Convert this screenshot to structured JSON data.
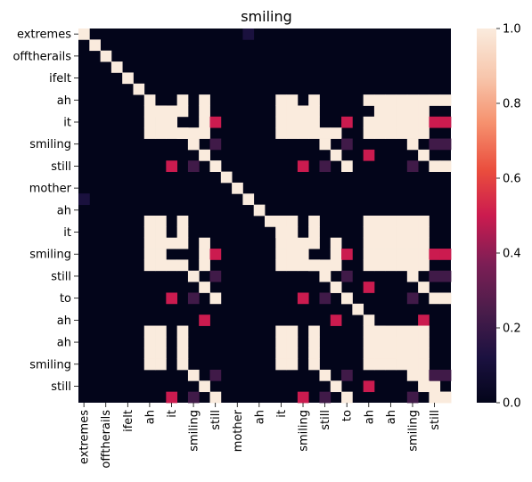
{
  "chart_data": {
    "type": "heatmap",
    "title": "smiling",
    "xlabel": "",
    "ylabel": "",
    "colormap": "rocket",
    "vmin": 0.0,
    "vmax": 1.0,
    "rows": 34,
    "cols": 34,
    "y_tick_labels": [
      "extremes",
      "offtherails",
      "ifelt",
      "ah",
      "it",
      "smiling",
      "still",
      "mother",
      "ah",
      "it",
      "smiling",
      "still",
      "to",
      "ah",
      "ah",
      "smiling",
      "still"
    ],
    "x_tick_labels": [
      "extremes",
      "offtherails",
      "ifelt",
      "ah",
      "it",
      "smiling",
      "still",
      "mother",
      "ah",
      "it",
      "smiling",
      "still",
      "to",
      "ah",
      "ah",
      "smiling",
      "still"
    ],
    "colorbar_ticks": [
      "0.0",
      "0.2",
      "0.4",
      "0.6",
      "0.8",
      "1.0"
    ],
    "colorbar_tick_values": [
      0.0,
      0.2,
      0.4,
      0.6,
      0.8,
      1.0
    ],
    "cells": [
      [
        0,
        0,
        1.0
      ],
      [
        1,
        1,
        1.0
      ],
      [
        2,
        2,
        1.0
      ],
      [
        3,
        3,
        1.0
      ],
      [
        4,
        4,
        1.0
      ],
      [
        5,
        5,
        1.0
      ],
      [
        6,
        6,
        1.0
      ],
      [
        7,
        7,
        1.0
      ],
      [
        8,
        8,
        1.0
      ],
      [
        9,
        9,
        1.0
      ],
      [
        10,
        10,
        1.0
      ],
      [
        11,
        11,
        1.0
      ],
      [
        12,
        12,
        1.0
      ],
      [
        13,
        13,
        1.0
      ],
      [
        14,
        14,
        1.0
      ],
      [
        15,
        15,
        1.0
      ],
      [
        16,
        16,
        1.0
      ],
      [
        17,
        17,
        1.0
      ],
      [
        18,
        18,
        1.0
      ],
      [
        19,
        19,
        1.0
      ],
      [
        20,
        20,
        1.0
      ],
      [
        21,
        21,
        1.0
      ],
      [
        22,
        22,
        1.0
      ],
      [
        23,
        23,
        1.0
      ],
      [
        24,
        24,
        1.0
      ],
      [
        25,
        25,
        1.0
      ],
      [
        26,
        26,
        1.0
      ],
      [
        27,
        27,
        1.0
      ],
      [
        28,
        28,
        1.0
      ],
      [
        29,
        29,
        1.0
      ],
      [
        30,
        30,
        1.0
      ],
      [
        31,
        31,
        1.0
      ],
      [
        32,
        32,
        1.0
      ],
      [
        33,
        33,
        1.0
      ],
      [
        0,
        15,
        0.12
      ],
      [
        15,
        0,
        0.12
      ],
      [
        6,
        9,
        1.0
      ],
      [
        6,
        11,
        1.0
      ],
      [
        6,
        18,
        1.0
      ],
      [
        6,
        19,
        1.0
      ],
      [
        6,
        21,
        1.0
      ],
      [
        6,
        26,
        1.0
      ],
      [
        6,
        27,
        1.0
      ],
      [
        6,
        28,
        1.0
      ],
      [
        6,
        29,
        1.0
      ],
      [
        6,
        30,
        1.0
      ],
      [
        6,
        31,
        1.0
      ],
      [
        6,
        32,
        1.0
      ],
      [
        6,
        33,
        1.0
      ],
      [
        7,
        6,
        1.0
      ],
      [
        7,
        7,
        1.0
      ],
      [
        7,
        8,
        1.0
      ],
      [
        7,
        9,
        1.0
      ],
      [
        7,
        11,
        1.0
      ],
      [
        7,
        18,
        1.0
      ],
      [
        7,
        19,
        1.0
      ],
      [
        7,
        20,
        1.0
      ],
      [
        7,
        21,
        1.0
      ],
      [
        7,
        27,
        1.0
      ],
      [
        7,
        28,
        1.0
      ],
      [
        7,
        29,
        1.0
      ],
      [
        7,
        30,
        1.0
      ],
      [
        7,
        31,
        1.0
      ],
      [
        8,
        6,
        1.0
      ],
      [
        8,
        7,
        1.0
      ],
      [
        8,
        11,
        1.0
      ],
      [
        8,
        12,
        0.5
      ],
      [
        8,
        18,
        1.0
      ],
      [
        8,
        19,
        1.0
      ],
      [
        8,
        20,
        1.0
      ],
      [
        8,
        21,
        1.0
      ],
      [
        8,
        24,
        0.5
      ],
      [
        8,
        26,
        1.0
      ],
      [
        8,
        27,
        1.0
      ],
      [
        8,
        28,
        1.0
      ],
      [
        8,
        29,
        1.0
      ],
      [
        8,
        30,
        1.0
      ],
      [
        8,
        31,
        1.0
      ],
      [
        8,
        32,
        0.5
      ],
      [
        8,
        33,
        0.5
      ],
      [
        9,
        6,
        1.0
      ],
      [
        9,
        7,
        1.0
      ],
      [
        9,
        8,
        1.0
      ],
      [
        9,
        9,
        1.0
      ],
      [
        9,
        10,
        1.0
      ],
      [
        9,
        11,
        1.0
      ],
      [
        9,
        18,
        1.0
      ],
      [
        9,
        19,
        1.0
      ],
      [
        9,
        20,
        1.0
      ],
      [
        9,
        21,
        1.0
      ],
      [
        9,
        22,
        1.0
      ],
      [
        9,
        23,
        1.0
      ],
      [
        9,
        26,
        1.0
      ],
      [
        9,
        27,
        1.0
      ],
      [
        9,
        28,
        1.0
      ],
      [
        9,
        29,
        1.0
      ],
      [
        9,
        30,
        1.0
      ],
      [
        9,
        31,
        1.0
      ],
      [
        10,
        10,
        1.0
      ],
      [
        10,
        12,
        0.22
      ],
      [
        10,
        22,
        1.0
      ],
      [
        10,
        24,
        0.22
      ],
      [
        10,
        30,
        1.0
      ],
      [
        10,
        32,
        0.22
      ],
      [
        10,
        33,
        0.22
      ],
      [
        11,
        11,
        1.0
      ],
      [
        11,
        23,
        1.0
      ],
      [
        11,
        26,
        0.5
      ],
      [
        11,
        31,
        1.0
      ],
      [
        12,
        8,
        0.5
      ],
      [
        12,
        10,
        0.22
      ],
      [
        12,
        12,
        1.0
      ],
      [
        12,
        20,
        0.5
      ],
      [
        12,
        22,
        0.22
      ],
      [
        12,
        24,
        1.0
      ],
      [
        12,
        30,
        0.22
      ],
      [
        12,
        32,
        1.0
      ],
      [
        12,
        33,
        1.0
      ],
      [
        15,
        0,
        0.12
      ],
      [
        17,
        6,
        1.0
      ],
      [
        17,
        7,
        1.0
      ],
      [
        17,
        9,
        1.0
      ],
      [
        17,
        18,
        1.0
      ],
      [
        17,
        19,
        1.0
      ],
      [
        17,
        21,
        1.0
      ],
      [
        17,
        26,
        1.0
      ],
      [
        17,
        27,
        1.0
      ],
      [
        17,
        28,
        1.0
      ],
      [
        17,
        29,
        1.0
      ],
      [
        17,
        30,
        1.0
      ],
      [
        17,
        31,
        1.0
      ],
      [
        18,
        6,
        1.0
      ],
      [
        18,
        7,
        1.0
      ],
      [
        18,
        9,
        1.0
      ],
      [
        18,
        18,
        1.0
      ],
      [
        18,
        19,
        1.0
      ],
      [
        18,
        21,
        1.0
      ],
      [
        18,
        26,
        1.0
      ],
      [
        18,
        27,
        1.0
      ],
      [
        18,
        28,
        1.0
      ],
      [
        18,
        29,
        1.0
      ],
      [
        18,
        30,
        1.0
      ],
      [
        18,
        31,
        1.0
      ],
      [
        19,
        6,
        1.0
      ],
      [
        19,
        7,
        1.0
      ],
      [
        19,
        8,
        1.0
      ],
      [
        19,
        9,
        1.0
      ],
      [
        19,
        11,
        1.0
      ],
      [
        19,
        18,
        1.0
      ],
      [
        19,
        19,
        1.0
      ],
      [
        19,
        20,
        1.0
      ],
      [
        19,
        21,
        1.0
      ],
      [
        19,
        23,
        1.0
      ],
      [
        19,
        26,
        1.0
      ],
      [
        19,
        27,
        1.0
      ],
      [
        19,
        28,
        1.0
      ],
      [
        19,
        29,
        1.0
      ],
      [
        19,
        30,
        1.0
      ],
      [
        19,
        31,
        1.0
      ],
      [
        20,
        6,
        1.0
      ],
      [
        20,
        7,
        1.0
      ],
      [
        20,
        11,
        1.0
      ],
      [
        20,
        12,
        0.5
      ],
      [
        20,
        18,
        1.0
      ],
      [
        20,
        19,
        1.0
      ],
      [
        20,
        23,
        1.0
      ],
      [
        20,
        24,
        0.5
      ],
      [
        20,
        26,
        1.0
      ],
      [
        20,
        27,
        1.0
      ],
      [
        20,
        28,
        1.0
      ],
      [
        20,
        29,
        1.0
      ],
      [
        20,
        30,
        1.0
      ],
      [
        20,
        31,
        1.0
      ],
      [
        20,
        32,
        0.5
      ],
      [
        20,
        33,
        0.5
      ],
      [
        21,
        6,
        1.0
      ],
      [
        21,
        7,
        1.0
      ],
      [
        21,
        8,
        1.0
      ],
      [
        21,
        9,
        1.0
      ],
      [
        21,
        11,
        1.0
      ],
      [
        21,
        18,
        1.0
      ],
      [
        21,
        19,
        1.0
      ],
      [
        21,
        20,
        1.0
      ],
      [
        21,
        21,
        1.0
      ],
      [
        21,
        22,
        1.0
      ],
      [
        21,
        23,
        1.0
      ],
      [
        21,
        26,
        1.0
      ],
      [
        21,
        27,
        1.0
      ],
      [
        21,
        28,
        1.0
      ],
      [
        21,
        29,
        1.0
      ],
      [
        21,
        30,
        1.0
      ],
      [
        21,
        31,
        1.0
      ],
      [
        22,
        10,
        1.0
      ],
      [
        22,
        12,
        0.22
      ],
      [
        22,
        22,
        1.0
      ],
      [
        22,
        24,
        0.22
      ],
      [
        22,
        30,
        1.0
      ],
      [
        22,
        32,
        0.22
      ],
      [
        22,
        33,
        0.22
      ],
      [
        23,
        11,
        1.0
      ],
      [
        23,
        23,
        1.0
      ],
      [
        23,
        26,
        0.5
      ],
      [
        23,
        31,
        1.0
      ],
      [
        24,
        8,
        0.5
      ],
      [
        24,
        10,
        0.22
      ],
      [
        24,
        12,
        1.0
      ],
      [
        24,
        20,
        0.5
      ],
      [
        24,
        22,
        0.22
      ],
      [
        24,
        24,
        1.0
      ],
      [
        24,
        30,
        0.22
      ],
      [
        24,
        32,
        1.0
      ],
      [
        24,
        33,
        1.0
      ],
      [
        26,
        11,
        0.5
      ],
      [
        26,
        23,
        0.5
      ],
      [
        26,
        31,
        0.5
      ],
      [
        27,
        6,
        1.0
      ],
      [
        27,
        7,
        1.0
      ],
      [
        27,
        9,
        1.0
      ],
      [
        27,
        18,
        1.0
      ],
      [
        27,
        19,
        1.0
      ],
      [
        27,
        21,
        1.0
      ],
      [
        27,
        26,
        1.0
      ],
      [
        27,
        27,
        1.0
      ],
      [
        27,
        28,
        1.0
      ],
      [
        27,
        29,
        1.0
      ],
      [
        27,
        30,
        1.0
      ],
      [
        27,
        31,
        1.0
      ],
      [
        28,
        6,
        1.0
      ],
      [
        28,
        7,
        1.0
      ],
      [
        28,
        9,
        1.0
      ],
      [
        28,
        18,
        1.0
      ],
      [
        28,
        19,
        1.0
      ],
      [
        28,
        21,
        1.0
      ],
      [
        28,
        26,
        1.0
      ],
      [
        28,
        27,
        1.0
      ],
      [
        28,
        28,
        1.0
      ],
      [
        28,
        29,
        1.0
      ],
      [
        28,
        30,
        1.0
      ],
      [
        28,
        31,
        1.0
      ],
      [
        29,
        6,
        1.0
      ],
      [
        29,
        7,
        1.0
      ],
      [
        29,
        9,
        1.0
      ],
      [
        29,
        18,
        1.0
      ],
      [
        29,
        19,
        1.0
      ],
      [
        29,
        21,
        1.0
      ],
      [
        29,
        26,
        1.0
      ],
      [
        29,
        27,
        1.0
      ],
      [
        29,
        28,
        1.0
      ],
      [
        29,
        29,
        1.0
      ],
      [
        29,
        30,
        1.0
      ],
      [
        29,
        31,
        1.0
      ],
      [
        30,
        6,
        1.0
      ],
      [
        30,
        7,
        1.0
      ],
      [
        30,
        9,
        1.0
      ],
      [
        30,
        18,
        1.0
      ],
      [
        30,
        19,
        1.0
      ],
      [
        30,
        21,
        1.0
      ],
      [
        30,
        26,
        1.0
      ],
      [
        30,
        27,
        1.0
      ],
      [
        30,
        28,
        1.0
      ],
      [
        30,
        29,
        1.0
      ],
      [
        30,
        30,
        1.0
      ],
      [
        30,
        31,
        1.0
      ],
      [
        31,
        10,
        1.0
      ],
      [
        31,
        12,
        0.22
      ],
      [
        31,
        22,
        1.0
      ],
      [
        31,
        24,
        0.22
      ],
      [
        31,
        30,
        1.0
      ],
      [
        31,
        32,
        0.22
      ],
      [
        31,
        33,
        0.22
      ],
      [
        32,
        11,
        1.0
      ],
      [
        32,
        23,
        1.0
      ],
      [
        32,
        26,
        0.5
      ],
      [
        32,
        31,
        1.0
      ],
      [
        33,
        8,
        0.5
      ],
      [
        33,
        10,
        0.22
      ],
      [
        33,
        12,
        1.0
      ],
      [
        33,
        20,
        0.5
      ],
      [
        33,
        22,
        0.22
      ],
      [
        33,
        24,
        1.0
      ],
      [
        33,
        30,
        0.22
      ],
      [
        33,
        32,
        1.0
      ],
      [
        33,
        33,
        1.0
      ]
    ]
  }
}
